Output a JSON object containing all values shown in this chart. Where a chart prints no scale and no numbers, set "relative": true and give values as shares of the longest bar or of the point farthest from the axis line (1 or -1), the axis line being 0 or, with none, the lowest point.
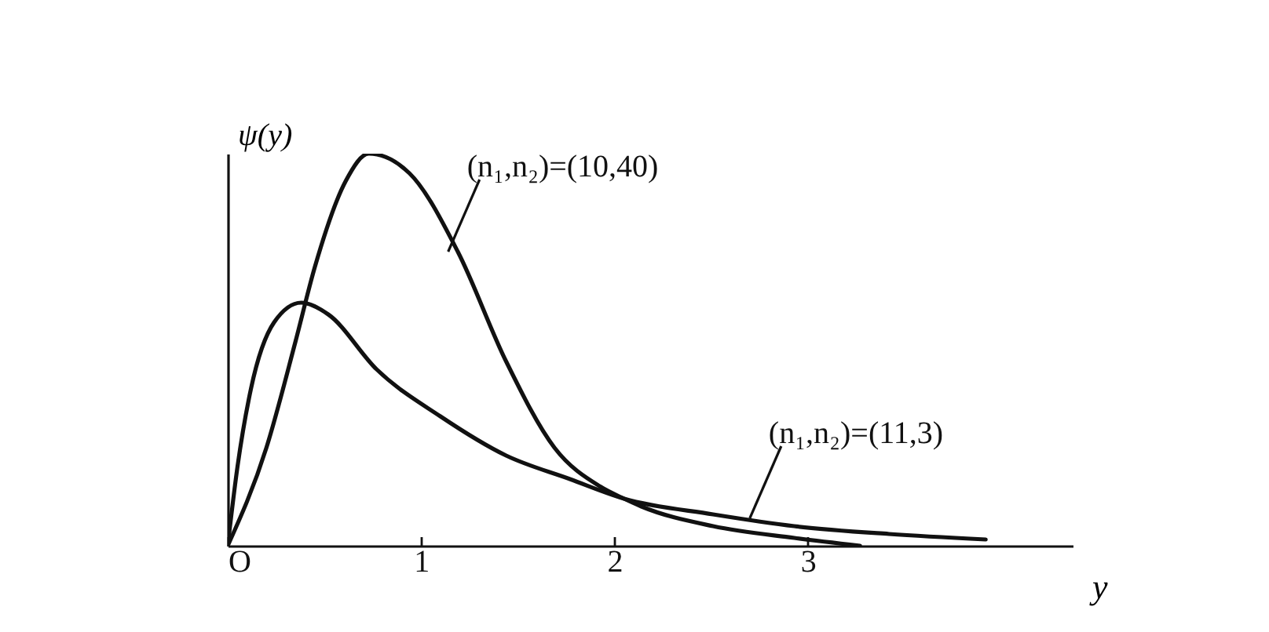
{
  "chart_data": {
    "type": "line",
    "relative": true,
    "xlabel": "y",
    "ylabel": "ψ(y)",
    "xlim": [
      0,
      4.37
    ],
    "xticks": [
      {
        "value": 0,
        "label": "O"
      },
      1,
      2,
      3
    ],
    "grid": false,
    "marker": "none",
    "line_style": "solid",
    "annotations": [
      {
        "text": "(n₁,n₂)=(10,40)",
        "x": 1.14,
        "y": 0.75
      },
      {
        "text": "(n₁,n₂)=(11,3)",
        "x": 2.7,
        "y": 0.07
      }
    ],
    "series": [
      {
        "color": "#111111",
        "x": [
          0,
          0.2,
          0.35,
          0.45,
          0.61,
          0.73,
          0.94,
          1.19,
          1.44,
          1.69,
          1.93,
          2.05,
          2.14,
          2.51,
          2.93,
          3.27
        ],
        "values": [
          0,
          0.25,
          0.52,
          0.71,
          0.93,
          1,
          0.95,
          0.75,
          0.47,
          0.25,
          0.15,
          0.12,
          0.1,
          0.05,
          0.02,
          0
        ]
      },
      {
        "color": "#111111",
        "x": [
          0,
          0.05,
          0.12,
          0.24,
          0.38,
          0.52,
          0.77,
          1.1,
          1.44,
          1.77,
          2.05,
          2.51,
          2.93,
          3.42,
          3.92
        ],
        "values": [
          0,
          0.2,
          0.4,
          0.57,
          0.62,
          0.59,
          0.45,
          0.33,
          0.23,
          0.17,
          0.12,
          0.08,
          0.05,
          0.03,
          0.016
        ]
      }
    ]
  }
}
